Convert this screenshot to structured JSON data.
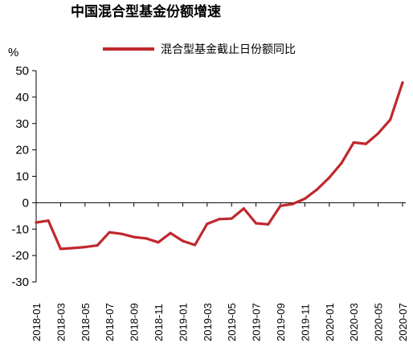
{
  "chart_data": {
    "type": "line",
    "title": "中国混合型基金份额增速",
    "unit_label": "%",
    "ylim": [
      -30,
      50
    ],
    "yticks": [
      -30,
      -20,
      -10,
      0,
      10,
      20,
      30,
      40,
      50
    ],
    "x_labels": [
      "2018-01",
      "2018-03",
      "2018-05",
      "2018-07",
      "2018-09",
      "2018-11",
      "2019-01",
      "2019-03",
      "2019-05",
      "2019-07",
      "2019-09",
      "2019-11",
      "2020-01",
      "2020-03",
      "2020-05",
      "2020-07"
    ],
    "x": [
      "2018-01",
      "2018-02",
      "2018-03",
      "2018-04",
      "2018-05",
      "2018-06",
      "2018-07",
      "2018-08",
      "2018-09",
      "2018-10",
      "2018-11",
      "2018-12",
      "2019-01",
      "2019-02",
      "2019-03",
      "2019-04",
      "2019-05",
      "2019-06",
      "2019-07",
      "2019-08",
      "2019-09",
      "2019-10",
      "2019-11",
      "2019-12",
      "2020-01",
      "2020-02",
      "2020-03",
      "2020-04",
      "2020-05",
      "2020-06",
      "2020-07"
    ],
    "series": [
      {
        "name": "混合型基金截止日份额同比",
        "color": "#c0282d",
        "values": [
          -7.5,
          -6.8,
          -17.5,
          -17.2,
          -16.8,
          -16.2,
          -11.2,
          -11.8,
          -13.0,
          -13.5,
          -15.0,
          -11.5,
          -14.5,
          -16.0,
          -8.0,
          -6.2,
          -6.0,
          -2.2,
          -7.8,
          -8.2,
          -1.2,
          -0.5,
          1.5,
          5.0,
          9.5,
          15.0,
          22.8,
          22.3,
          26.2,
          31.5,
          45.5
        ]
      }
    ],
    "legend_position": "top-center",
    "grid": false
  }
}
